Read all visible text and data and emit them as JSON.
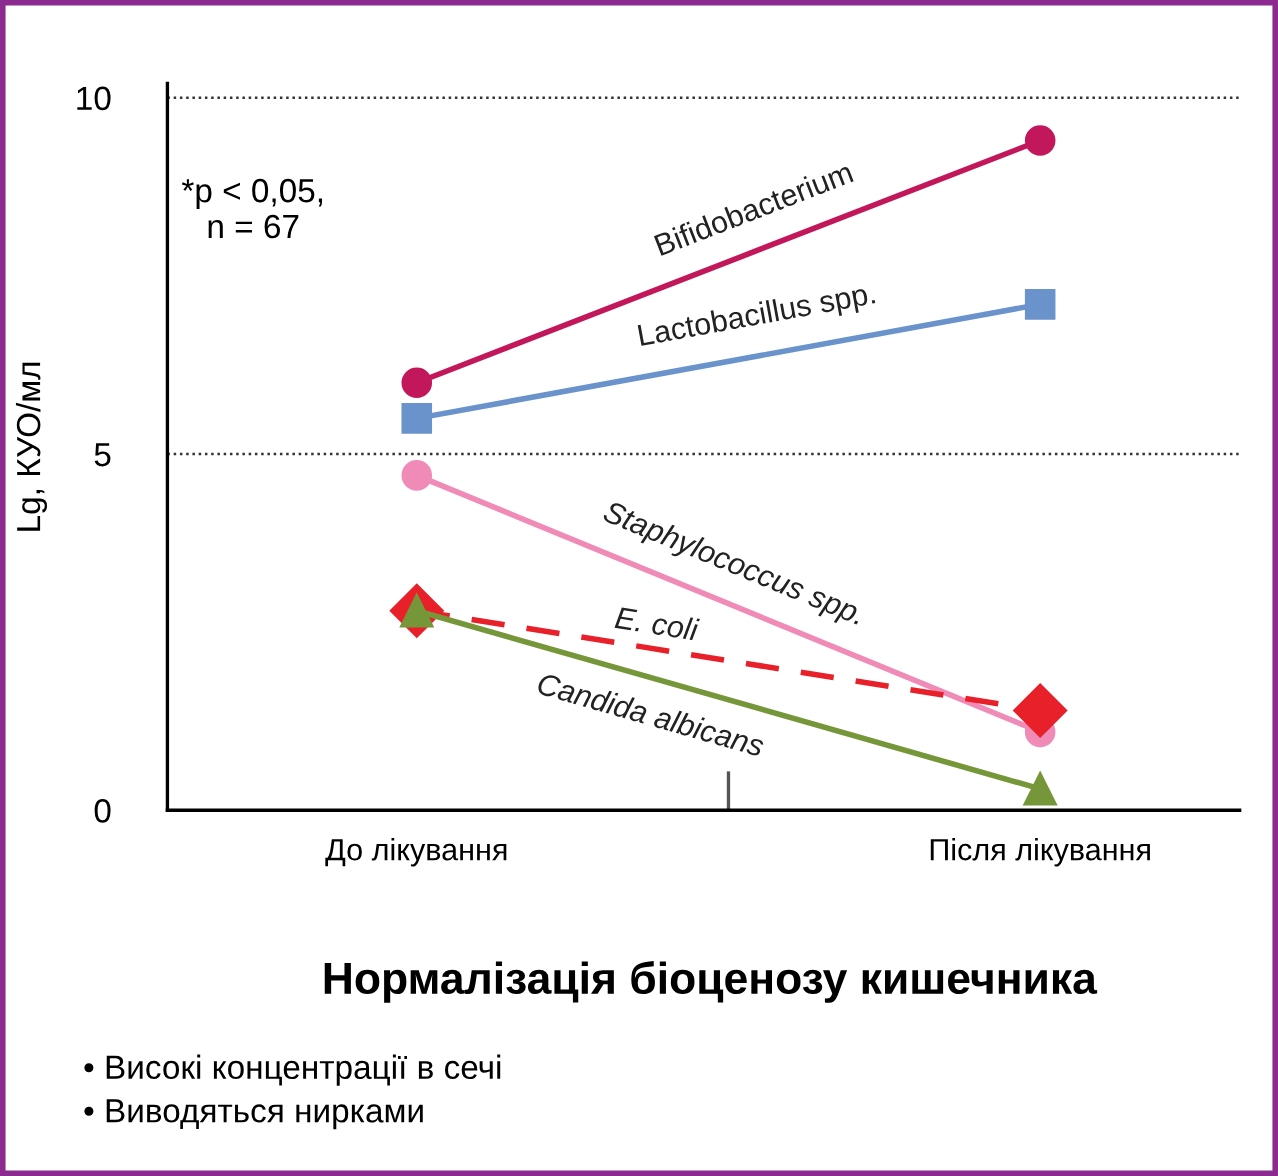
{
  "chart_data": {
    "type": "line",
    "title": "Нормалізація біоценозу кишечника",
    "ylabel": "Lg, КУО/мл",
    "categories": [
      "До лікування",
      "Після лікування"
    ],
    "series": [
      {
        "name": "Bifidobacterium",
        "color": "#c2185b",
        "values": [
          6.0,
          9.4
        ],
        "marker": "circle",
        "line_style": "solid"
      },
      {
        "name": "Lactobacillus spp.",
        "color": "#6a93cc",
        "values": [
          5.5,
          7.1
        ],
        "marker": "square",
        "line_style": "solid"
      },
      {
        "name": "Staphylococcus spp.",
        "color": "#f08bb8",
        "values": [
          4.7,
          1.1
        ],
        "marker": "circle",
        "line_style": "solid"
      },
      {
        "name": "E. coli",
        "color": "#e8202a",
        "values": [
          2.8,
          1.4
        ],
        "marker": "diamond",
        "line_style": "dashed"
      },
      {
        "name": "Candida albicans",
        "color": "#76963a",
        "values": [
          2.8,
          0.3
        ],
        "marker": "triangle",
        "line_style": "solid"
      }
    ],
    "ylim": [
      0,
      10.2
    ],
    "yticks": [
      0,
      5,
      10
    ],
    "grid": "y",
    "legend": false,
    "annotations": [
      "*p < 0,05,\nn = 67",
      "• Високі концентрації в сечі",
      "• Виводяться нирками"
    ]
  }
}
